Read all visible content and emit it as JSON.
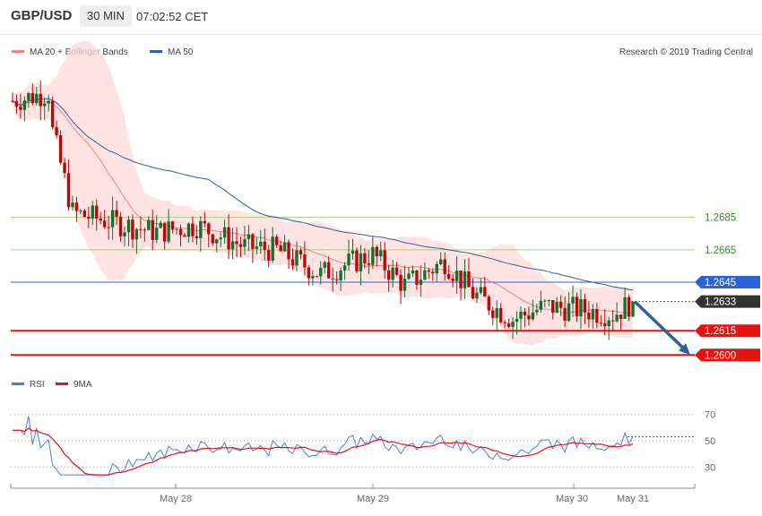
{
  "header": {
    "pair": "GBP/USD",
    "timeframe": "30 MIN",
    "time": "07:02:52 CET"
  },
  "legend": {
    "ma20_bb": "MA 20 + Bollinger Bands",
    "ma50": "MA 50",
    "copyright": "Research © 2019 Trading Central",
    "rsi": "RSI",
    "ma9": "9MA"
  },
  "colors": {
    "up": "#1a6e2c",
    "down": "#b50a0a",
    "bb_fill": "#ffd9d9",
    "ma20": "#f08080",
    "ma50": "#2f5f9f",
    "resistance_green": "#a6cf7a",
    "pivot_blue": "#2b62d6",
    "support_red": "#e51212",
    "current_dark": "#333333",
    "rsi_line": "#4a7de0",
    "rsi_ma": "#e51212"
  },
  "chart_data": [
    {
      "type": "candlestick",
      "title": "GBP/USD",
      "timeframe": "30 MIN",
      "ylim": [
        1.2588,
        1.2775
      ],
      "x_labels": [
        "May 28",
        "May 29",
        "May 30",
        "May 31"
      ],
      "price_levels": [
        {
          "value": 1.2685,
          "label": "1.2685",
          "style": "resistance"
        },
        {
          "value": 1.2665,
          "label": "1.2665",
          "style": "resistance"
        },
        {
          "value": 1.2645,
          "label": "1.2645",
          "style": "pivot"
        },
        {
          "value": 1.2633,
          "label": "1.2633",
          "style": "current"
        },
        {
          "value": 1.2615,
          "label": "1.2615",
          "style": "support"
        },
        {
          "value": 1.26,
          "label": "1.2600",
          "style": "support"
        }
      ],
      "forecast_arrow": {
        "from": 1.2633,
        "to": 1.26
      }
    },
    {
      "type": "line",
      "name": "RSI",
      "ylim": [
        20,
        80
      ],
      "y_ticks": [
        70,
        50,
        30
      ],
      "reference_level": 53
    }
  ]
}
